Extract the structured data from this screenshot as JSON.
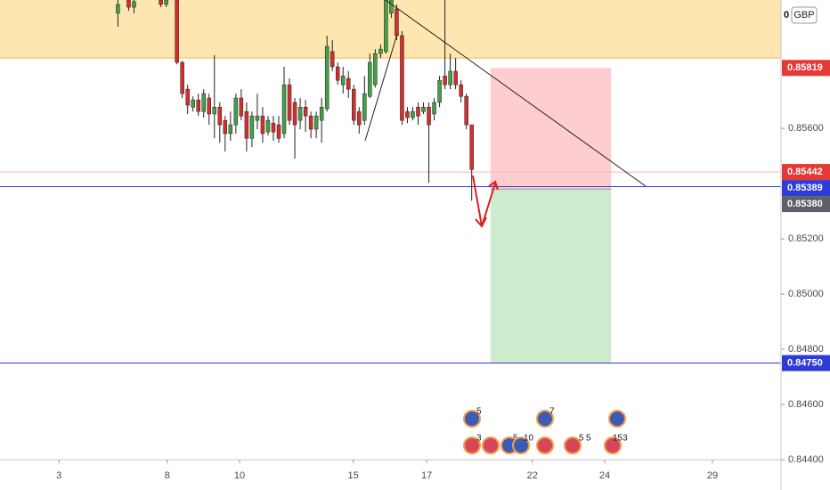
{
  "chart_data": {
    "type": "candlestick",
    "symbol_value": "0",
    "currency": "GBP",
    "xlim": [
      0,
      145.7
    ],
    "ylim": [
      0.844,
      0.86065
    ],
    "xticks": [
      {
        "value": 11.0,
        "label": "3"
      },
      {
        "value": 31.2,
        "label": "8"
      },
      {
        "value": 44.7,
        "label": "10"
      },
      {
        "value": 65.9,
        "label": "15"
      },
      {
        "value": 79.6,
        "label": "17"
      },
      {
        "value": 99.3,
        "label": "22"
      },
      {
        "value": 112.8,
        "label": "24"
      },
      {
        "value": 132.9,
        "label": "29"
      }
    ],
    "yticks": [
      {
        "value": 0.856,
        "label": "0.85600"
      },
      {
        "value": 0.852,
        "label": "0.85200"
      },
      {
        "value": 0.85,
        "label": "0.85000"
      },
      {
        "value": 0.848,
        "label": "0.84800"
      },
      {
        "value": 0.846,
        "label": "0.84600"
      },
      {
        "value": 0.844,
        "label": "0.84400"
      }
    ],
    "up_color": "#43a047",
    "down_color": "#d32f2f",
    "wick_color": "#222222",
    "x": [
      22,
      24,
      25,
      30,
      31,
      33,
      34,
      35,
      36,
      37,
      38,
      39,
      40,
      41,
      42,
      43,
      44,
      45,
      46,
      47,
      48,
      49,
      50,
      51,
      52,
      53,
      54,
      55,
      56,
      57,
      58,
      59,
      60,
      61,
      62,
      63,
      64,
      65,
      66,
      67,
      68,
      69,
      70,
      71,
      72,
      73,
      74,
      75,
      76,
      77,
      78,
      79,
      80,
      81,
      82,
      83,
      84,
      85,
      86,
      87,
      88
    ],
    "open": [
      0.86017,
      0.86065,
      0.86039,
      0.86065,
      0.86049,
      0.86065,
      0.85839,
      0.85742,
      0.85677,
      0.85703,
      0.85661,
      0.8571,
      0.85652,
      0.85677,
      0.85629,
      0.85581,
      0.85613,
      0.8571,
      0.85661,
      0.85564,
      0.85629,
      0.85645,
      0.85587,
      0.85619,
      0.85613,
      0.85581,
      0.85758,
      0.85694,
      0.85629,
      0.85677,
      0.85645,
      0.85597,
      0.85629,
      0.85671,
      0.85878,
      0.85823,
      0.85758,
      0.85781,
      0.85742,
      0.85661,
      0.85629,
      0.85716,
      0.85758,
      0.85871,
      0.85878,
      0.86017,
      0.86033,
      0.85936,
      0.85661,
      0.85639,
      0.85677,
      0.85661,
      0.85677,
      0.85652,
      0.85694,
      0.8579,
      0.85758,
      0.85807,
      0.85758,
      0.85716,
      0.85613
    ],
    "high": [
      0.86081,
      0.86081,
      0.86081,
      0.86081,
      0.86081,
      0.86081,
      0.85845,
      0.85758,
      0.85716,
      0.85726,
      0.85742,
      0.85726,
      0.85865,
      0.85694,
      0.85645,
      0.85661,
      0.85726,
      0.85742,
      0.85694,
      0.85661,
      0.85726,
      0.85677,
      0.85645,
      0.85645,
      0.85645,
      0.85823,
      0.85781,
      0.8571,
      0.8571,
      0.85703,
      0.85661,
      0.85661,
      0.8571,
      0.85936,
      0.8592,
      0.85839,
      0.85823,
      0.85807,
      0.85758,
      0.85677,
      0.8579,
      0.85871,
      0.85887,
      0.85904,
      0.86081,
      0.86081,
      0.86049,
      0.85952,
      0.85677,
      0.85677,
      0.85694,
      0.85694,
      0.85694,
      0.8571,
      0.8579,
      0.86065,
      0.85871,
      0.85855,
      0.85774,
      0.85726,
      0.85613
    ],
    "low": [
      0.85968,
      0.86026,
      0.86017,
      0.86039,
      0.86039,
      0.85832,
      0.8571,
      0.85652,
      0.85661,
      0.85645,
      0.85639,
      0.85613,
      0.85564,
      0.85548,
      0.85516,
      0.85555,
      0.85581,
      0.85629,
      0.85516,
      0.85532,
      0.85597,
      0.85548,
      0.85574,
      0.85555,
      0.85548,
      0.85564,
      0.85613,
      0.8549,
      0.85597,
      0.85587,
      0.85564,
      0.85564,
      0.85548,
      0.85661,
      0.85807,
      0.85758,
      0.85726,
      0.8571,
      0.85613,
      0.85581,
      0.85613,
      0.8571,
      0.85748,
      0.85855,
      0.85871,
      0.86,
      0.8592,
      0.85613,
      0.85619,
      0.85629,
      0.85613,
      0.85652,
      0.85403,
      0.85629,
      0.85677,
      0.85742,
      0.85742,
      0.85742,
      0.85694,
      0.85597,
      0.85338
    ],
    "close": [
      0.86049,
      0.86039,
      0.86059,
      0.86049,
      0.86065,
      0.85839,
      0.85726,
      0.85684,
      0.85703,
      0.85661,
      0.85726,
      0.85652,
      0.85677,
      0.85613,
      0.85581,
      0.85613,
      0.8571,
      0.85645,
      0.85564,
      0.85645,
      0.85645,
      0.85581,
      0.85629,
      0.85587,
      0.85564,
      0.85758,
      0.85629,
      0.85613,
      0.85677,
      0.85645,
      0.85597,
      0.85645,
      0.85677,
      0.85897,
      0.85823,
      0.85774,
      0.8579,
      0.85742,
      0.85629,
      0.85613,
      0.85726,
      0.85839,
      0.85871,
      0.85887,
      0.86065,
      0.86065,
      0.85936,
      0.85629,
      0.85639,
      0.85661,
      0.85645,
      0.85677,
      0.85613,
      0.85694,
      0.85774,
      0.85758,
      0.85807,
      0.85758,
      0.85716,
      0.85613,
      0.85451
    ],
    "zone": {
      "from": 0.85855,
      "to": 0.8607,
      "color": "#fde6b0",
      "border": "#f0b94a"
    },
    "position": {
      "x": [
        91.5,
        114.0
      ],
      "entry": 0.8538,
      "stop": 0.85819,
      "target": 0.8475,
      "stop_color": "#fdcdd0",
      "target_color": "#cdeccd"
    },
    "price_labels": [
      {
        "value": 0.85819,
        "color": "#e53935",
        "line": false
      },
      {
        "value": 0.85442,
        "color": "#e53935",
        "line": true,
        "line_color": "#f3b8b8"
      },
      {
        "value": 0.85389,
        "color": "#2f3bd6",
        "line": true,
        "line_color": "#2f3bd6"
      },
      {
        "value": 0.8538,
        "label": "0.85380",
        "color": "#5d606b",
        "line": false
      },
      {
        "value": 0.8475,
        "label": "0.84750",
        "color": "#2f3bd6",
        "line": true,
        "line_color": "#2f3bd6"
      }
    ],
    "events": [
      "5",
      "7",
      "3",
      "5",
      "10",
      "5",
      "5",
      "153"
    ]
  }
}
